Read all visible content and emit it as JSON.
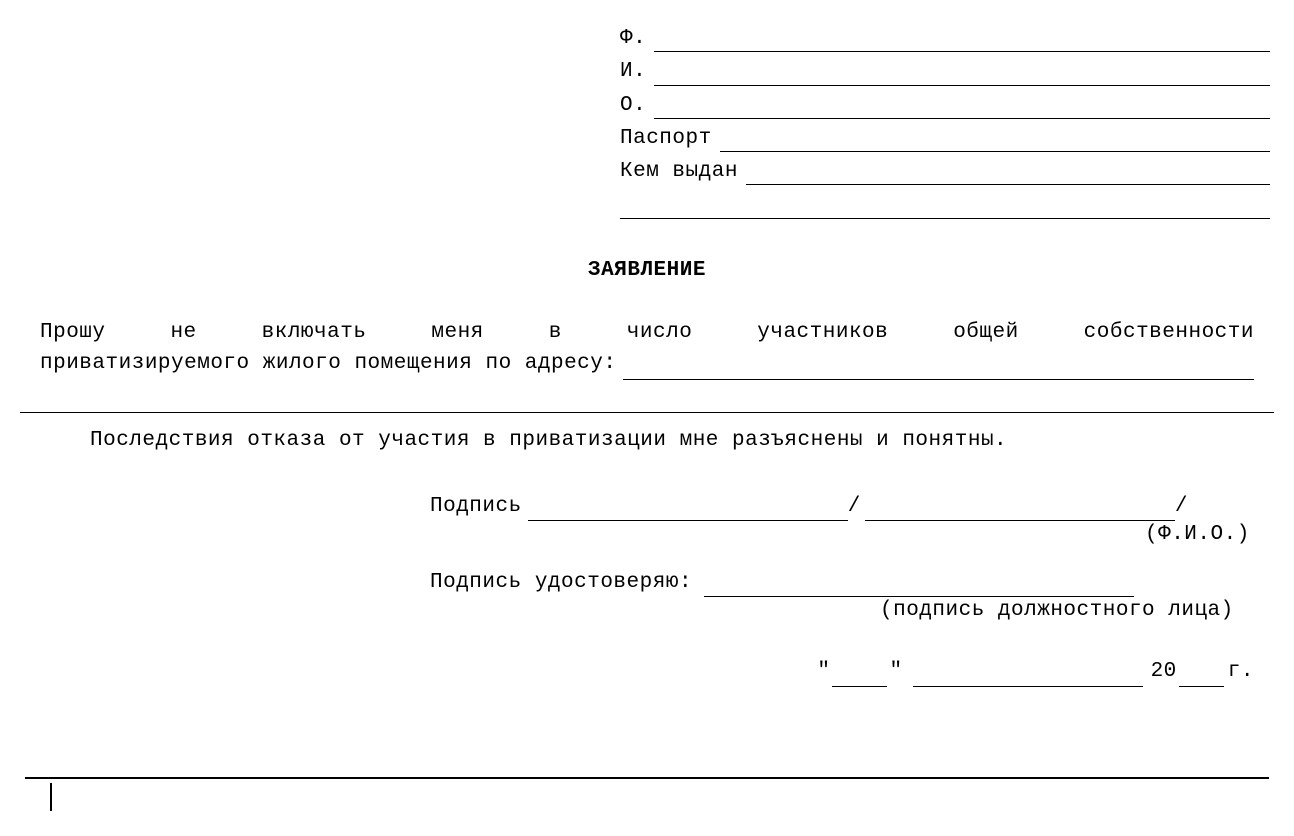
{
  "header": {
    "f": "Ф.",
    "i": "И.",
    "o": "О.",
    "passport": "Паспорт",
    "issuedBy": "Кем выдан"
  },
  "title": "ЗАЯВЛЕНИЕ",
  "body": {
    "line1": "Прошу не включать меня в число участников общей собственности",
    "line2prefix": "приватизируемого жилого помещения по адресу:",
    "consequences": "Последствия отказа от участия в приватизации мне разъяснены и понятны."
  },
  "signature": {
    "sign": "Подпись",
    "fio": "(Ф.И.О.)",
    "certify": "Подпись удостоверяю:",
    "official": "(подпись должностного лица)"
  },
  "date": {
    "q": "\"",
    "centuryPrefix": "20",
    "yearSuffix": "г."
  }
}
